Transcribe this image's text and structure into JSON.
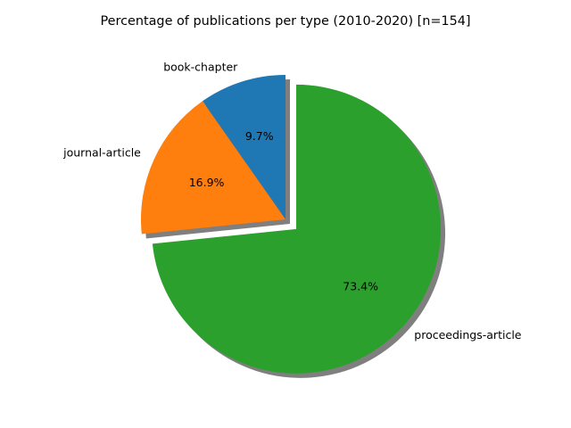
{
  "chart_data": {
    "type": "pie",
    "title": "Percentage of publications per type (2010-2020) [n=154]",
    "slices": [
      {
        "label": "book-chapter",
        "value": 15,
        "percent_label": "9.7%",
        "color": "#1f77b4",
        "explode": 0
      },
      {
        "label": "journal-article",
        "value": 26,
        "percent_label": "16.9%",
        "color": "#ff7f0e",
        "explode": 0
      },
      {
        "label": "proceedings-article",
        "value": 113,
        "percent_label": "73.4%",
        "color": "#2ca02c",
        "explode": 0.1
      }
    ],
    "start_angle_deg": 90,
    "direction": "counterclockwise",
    "shadow": true,
    "shadow_color": "#000000",
    "background": "#ffffff"
  }
}
